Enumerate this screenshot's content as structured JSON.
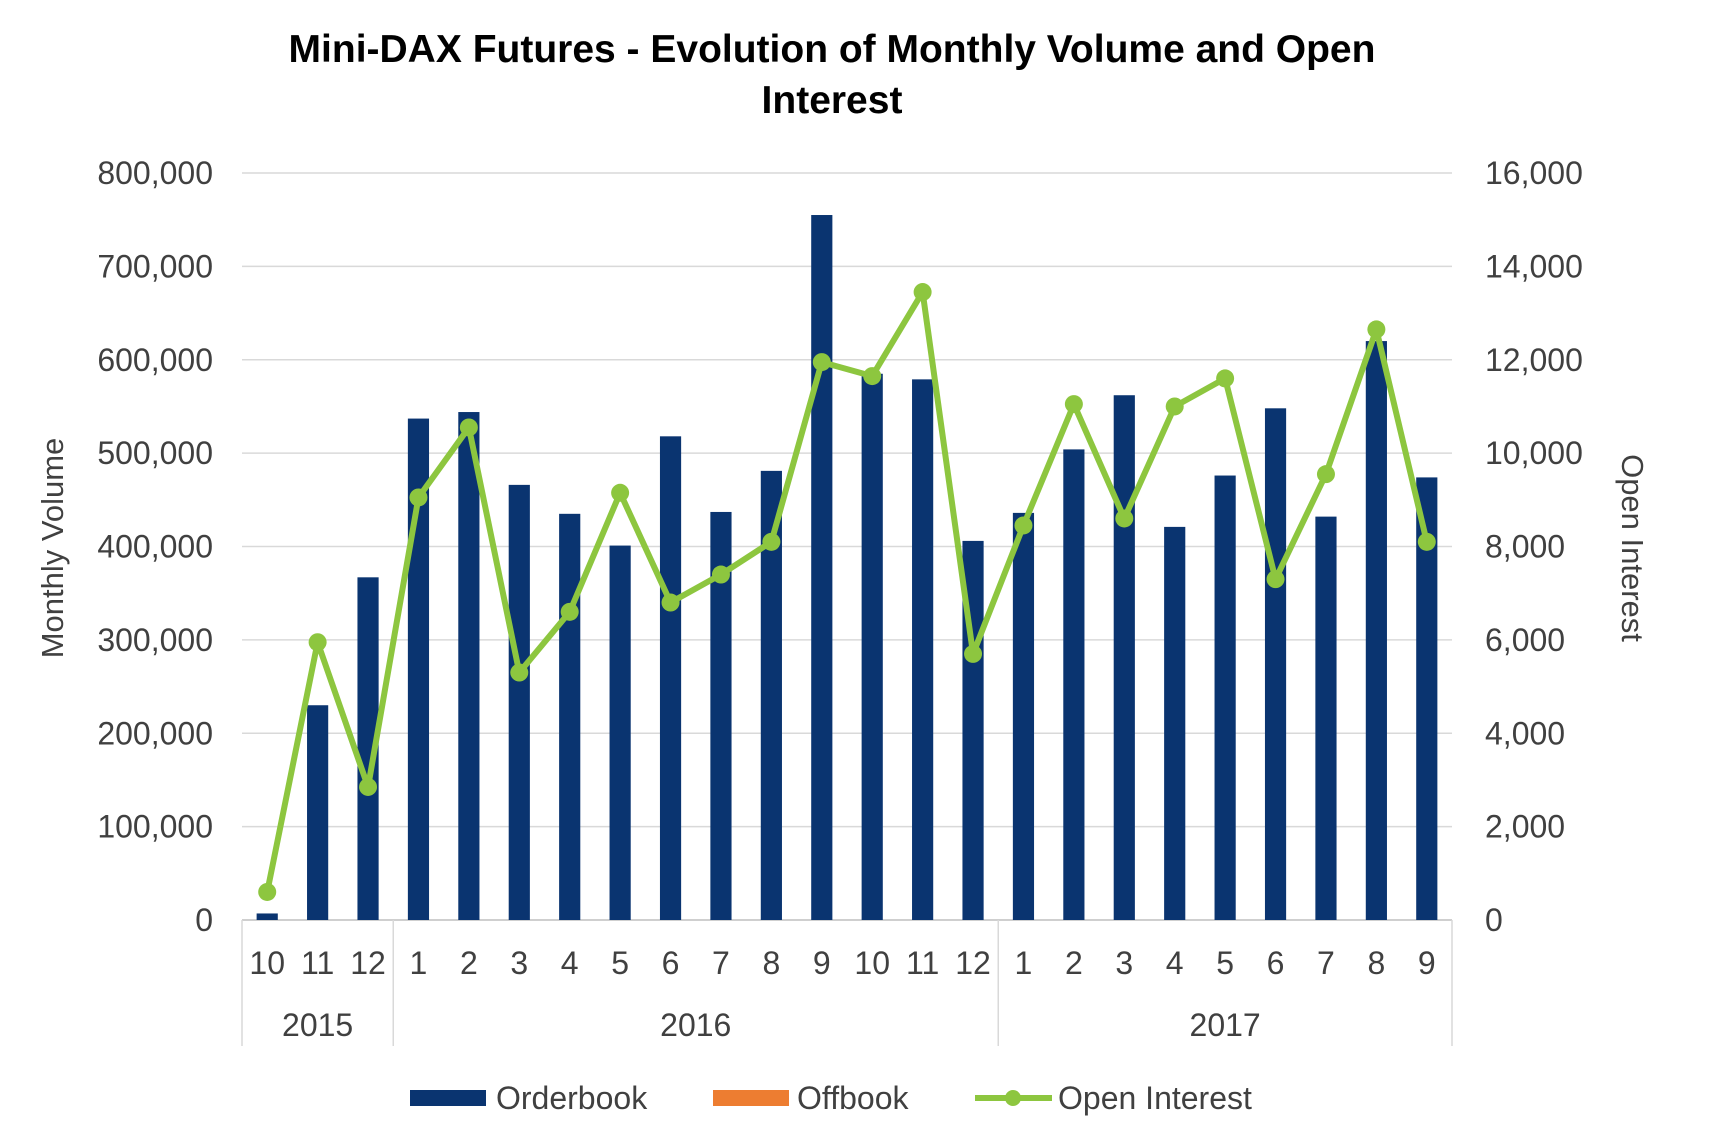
{
  "chart_data": {
    "type": "bar",
    "title_line1": "Mini-DAX Futures - Evolution of Monthly Volume and Open",
    "title_line2": "Interest",
    "ylabel": "Monthly Volume",
    "y2label": "Open Interest",
    "ylim": [
      0,
      800000
    ],
    "y2lim": [
      0,
      16000
    ],
    "yticks": [
      "0",
      "100,000",
      "200,000",
      "300,000",
      "400,000",
      "500,000",
      "600,000",
      "700,000",
      "800,000"
    ],
    "y2ticks": [
      "0",
      "2,000",
      "4,000",
      "6,000",
      "8,000",
      "10,000",
      "12,000",
      "14,000",
      "16,000"
    ],
    "categories": [
      "10",
      "11",
      "12",
      "1",
      "2",
      "3",
      "4",
      "5",
      "6",
      "7",
      "8",
      "9",
      "10",
      "11",
      "12",
      "1",
      "2",
      "3",
      "4",
      "5",
      "6",
      "7",
      "8",
      "9"
    ],
    "year_groups": [
      {
        "label": "2015",
        "start": 0,
        "end": 2
      },
      {
        "label": "2016",
        "start": 3,
        "end": 14
      },
      {
        "label": "2017",
        "start": 15,
        "end": 23
      }
    ],
    "grid": true,
    "legend_position": "bottom",
    "series": [
      {
        "name": "Orderbook",
        "type": "bar",
        "axis": "left",
        "color": "#0a3470",
        "values": [
          7000,
          230000,
          367000,
          537000,
          544000,
          466000,
          435000,
          401000,
          518000,
          437000,
          481000,
          755000,
          585000,
          579000,
          406000,
          436000,
          504000,
          562000,
          421000,
          476000,
          548000,
          432000,
          620000,
          474000
        ]
      },
      {
        "name": "Offbook",
        "type": "bar",
        "axis": "left",
        "color": "#ed7d31",
        "values": [
          0,
          0,
          0,
          0,
          0,
          0,
          0,
          0,
          0,
          0,
          0,
          0,
          0,
          0,
          0,
          0,
          0,
          0,
          0,
          0,
          0,
          0,
          0,
          0
        ]
      },
      {
        "name": "Open Interest",
        "type": "line",
        "axis": "right",
        "color": "#8dc63f",
        "values": [
          600,
          5950,
          2850,
          9050,
          10550,
          5300,
          6600,
          9150,
          6800,
          7400,
          8100,
          11950,
          11650,
          13450,
          5700,
          8450,
          11050,
          8600,
          11000,
          11600,
          7300,
          9550,
          12650,
          8100
        ]
      }
    ]
  }
}
